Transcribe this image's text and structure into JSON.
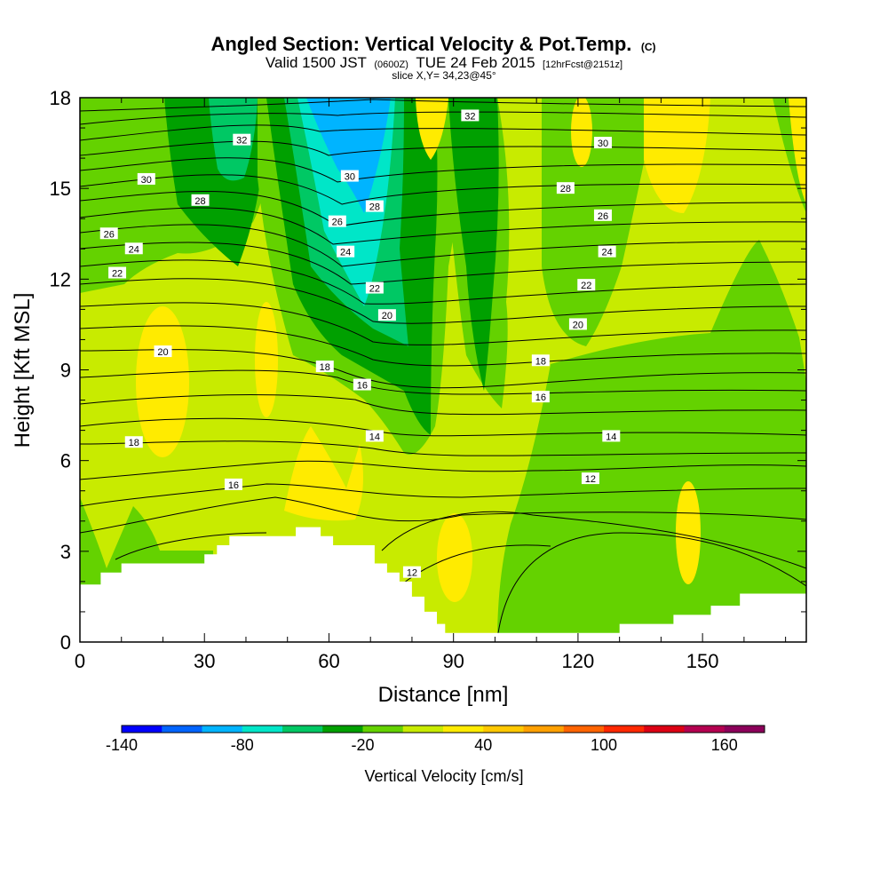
{
  "title": {
    "main": "Angled Section: Vertical Velocity & Pot.Temp.",
    "suffix": "(C)",
    "valid_prefix": "Valid 1500 JST",
    "valid_small1": "(0600Z)",
    "valid_mid": "TUE 24 Feb 2015",
    "valid_small2": "[12hrFcst@2151z]",
    "slice": "slice X,Y= 34,23@45°"
  },
  "chart_data": {
    "type": "heatmap",
    "xlabel": "Distance [nm]",
    "ylabel": "Height [Kft MSL]",
    "xlim": [
      0,
      175
    ],
    "ylim": [
      0,
      18
    ],
    "x_ticks": [
      0,
      30,
      60,
      90,
      120,
      150
    ],
    "y_ticks": [
      0,
      3,
      6,
      9,
      12,
      15,
      18
    ],
    "colorbar": {
      "label": "Vertical Velocity [cm/s]",
      "min": -140,
      "max": 180,
      "step": 20,
      "tick_values": [
        -140,
        -80,
        -20,
        40,
        100,
        160
      ],
      "colors": [
        "#0000ff",
        "#0064ff",
        "#00b4ff",
        "#00e6c8",
        "#00c864",
        "#00a000",
        "#64d200",
        "#c8eb00",
        "#ffeb00",
        "#ffc800",
        "#ffa000",
        "#ff6400",
        "#ff2800",
        "#dc0014",
        "#b40050",
        "#8c005a"
      ]
    },
    "terrain_profile": [
      [
        0,
        1.9
      ],
      [
        5,
        1.9
      ],
      [
        5,
        2.3
      ],
      [
        10,
        2.3
      ],
      [
        10,
        2.6
      ],
      [
        30,
        2.6
      ],
      [
        30,
        2.9
      ],
      [
        33,
        2.9
      ],
      [
        33,
        3.2
      ],
      [
        36,
        3.2
      ],
      [
        36,
        3.5
      ],
      [
        52,
        3.5
      ],
      [
        52,
        3.8
      ],
      [
        58,
        3.8
      ],
      [
        58,
        3.5
      ],
      [
        61,
        3.5
      ],
      [
        61,
        3.2
      ],
      [
        71,
        3.2
      ],
      [
        71,
        2.6
      ],
      [
        74,
        2.6
      ],
      [
        74,
        2.3
      ],
      [
        77,
        2.3
      ],
      [
        77,
        2.0
      ],
      [
        80,
        2.0
      ],
      [
        80,
        1.5
      ],
      [
        83,
        1.5
      ],
      [
        83,
        1.0
      ],
      [
        86,
        1.0
      ],
      [
        86,
        0.6
      ],
      [
        88,
        0.6
      ],
      [
        88,
        0.3
      ],
      [
        130,
        0.3
      ],
      [
        130,
        0.6
      ],
      [
        143,
        0.6
      ],
      [
        143,
        0.9
      ],
      [
        152,
        0.9
      ],
      [
        152,
        1.2
      ],
      [
        159,
        1.2
      ],
      [
        159,
        1.6
      ],
      [
        175,
        1.6
      ]
    ],
    "contour_labels": [
      {
        "text": "32",
        "x": 39,
        "y": 16.6
      },
      {
        "text": "30",
        "x": 16,
        "y": 15.3
      },
      {
        "text": "28",
        "x": 29,
        "y": 14.6
      },
      {
        "text": "26",
        "x": 7,
        "y": 13.5
      },
      {
        "text": "24",
        "x": 13,
        "y": 13.0
      },
      {
        "text": "22",
        "x": 9,
        "y": 12.2
      },
      {
        "text": "30",
        "x": 65,
        "y": 15.4
      },
      {
        "text": "28",
        "x": 71,
        "y": 14.4
      },
      {
        "text": "26",
        "x": 62,
        "y": 13.9
      },
      {
        "text": "24",
        "x": 64,
        "y": 12.9
      },
      {
        "text": "22",
        "x": 71,
        "y": 11.7
      },
      {
        "text": "20",
        "x": 74,
        "y": 10.8
      },
      {
        "text": "18",
        "x": 59,
        "y": 9.1
      },
      {
        "text": "16",
        "x": 68,
        "y": 8.5
      },
      {
        "text": "14",
        "x": 71,
        "y": 6.8
      },
      {
        "text": "32",
        "x": 94,
        "y": 17.4
      },
      {
        "text": "30",
        "x": 126,
        "y": 16.5
      },
      {
        "text": "28",
        "x": 117,
        "y": 15.0
      },
      {
        "text": "26",
        "x": 126,
        "y": 14.1
      },
      {
        "text": "24",
        "x": 127,
        "y": 12.9
      },
      {
        "text": "22",
        "x": 122,
        "y": 11.8
      },
      {
        "text": "20",
        "x": 120,
        "y": 10.5
      },
      {
        "text": "18",
        "x": 111,
        "y": 9.3
      },
      {
        "text": "16",
        "x": 111,
        "y": 8.1
      },
      {
        "text": "14",
        "x": 128,
        "y": 6.8
      },
      {
        "text": "12",
        "x": 123,
        "y": 5.4
      },
      {
        "text": "12",
        "x": 80,
        "y": 2.3
      },
      {
        "text": "20",
        "x": 20,
        "y": 9.6
      },
      {
        "text": "18",
        "x": 13,
        "y": 6.6
      },
      {
        "text": "16",
        "x": 37,
        "y": 5.2
      }
    ]
  }
}
